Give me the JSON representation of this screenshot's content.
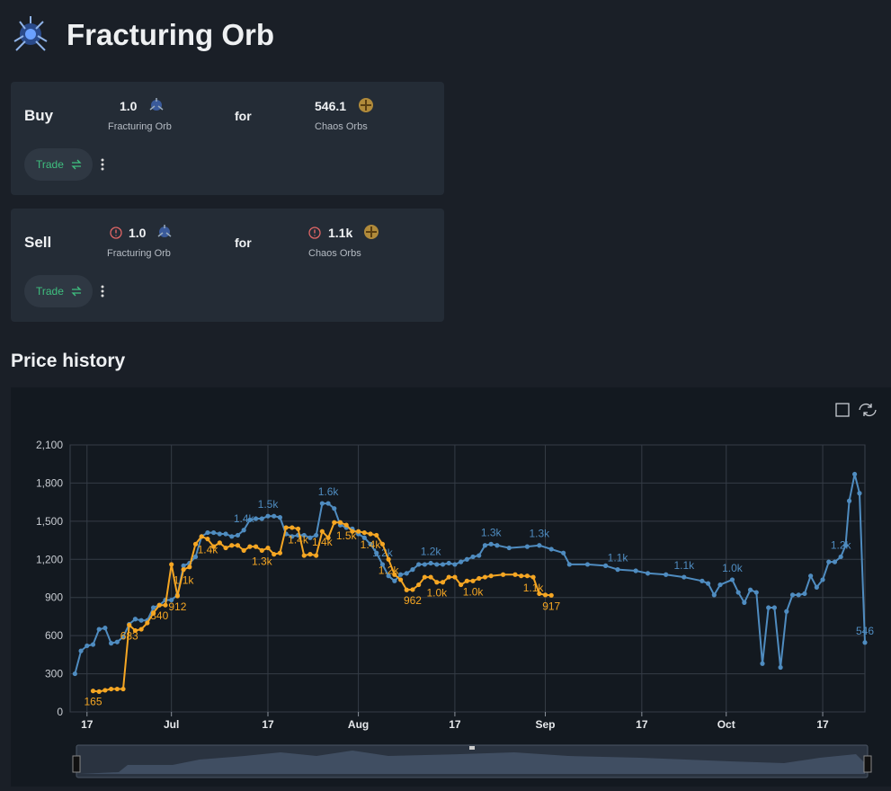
{
  "header": {
    "title": "Fracturing Orb"
  },
  "buy": {
    "label": "Buy",
    "give_amount": "1.0",
    "give_item": "Fracturing Orb",
    "for": "for",
    "get_amount": "546.1",
    "get_item": "Chaos Orbs",
    "button": "Trade"
  },
  "sell": {
    "label": "Sell",
    "give_amount": "1.0",
    "give_item": "Fracturing Orb",
    "for": "for",
    "get_amount": "1.1k",
    "get_item": "Chaos Orbs",
    "button": "Trade"
  },
  "section_title": "Price history",
  "chart_data": {
    "type": "line",
    "grid": true,
    "xlim": [
      14.2,
      146
    ],
    "ylim": [
      0,
      2100
    ],
    "xticks": [
      17,
      {
        "value": 31,
        "label": "Jul"
      },
      {
        "value": 47,
        "label": "17"
      },
      {
        "value": 62,
        "label": "Aug"
      },
      {
        "value": 78,
        "label": "17"
      },
      {
        "value": 93,
        "label": "Sep"
      },
      {
        "value": 109,
        "label": "17"
      },
      {
        "value": 123,
        "label": "Oct"
      },
      {
        "value": 139,
        "label": "17"
      }
    ],
    "yticks": [
      0,
      300,
      600,
      900,
      {
        "value": 1200,
        "label": "1,200"
      },
      {
        "value": 1500,
        "label": "1,500"
      },
      {
        "value": 1800,
        "label": "1,800"
      },
      {
        "value": 2100,
        "label": "2,100"
      }
    ],
    "series": [
      {
        "color": "#4f8cc0",
        "x": [
          15,
          16,
          17,
          18,
          19,
          20,
          21,
          22,
          23,
          24,
          25,
          26,
          27,
          28,
          29,
          30,
          31,
          32,
          33,
          34,
          35,
          36,
          37,
          38,
          39,
          40,
          41,
          42,
          43,
          44,
          45,
          46,
          47,
          48,
          49,
          50,
          51,
          52,
          53,
          54,
          55,
          56,
          57,
          58,
          59,
          60,
          61,
          62,
          63,
          64,
          65,
          66,
          67,
          68,
          69,
          70,
          71,
          72,
          73,
          74,
          75,
          76,
          77,
          78,
          79,
          80,
          81,
          82,
          83,
          84,
          85,
          87,
          90,
          92,
          94,
          96,
          97,
          100,
          103,
          105,
          108,
          110,
          113,
          116,
          119,
          120,
          121,
          122,
          124,
          125,
          126,
          127,
          128,
          129,
          130,
          131,
          132,
          133,
          134,
          135,
          136,
          137,
          138,
          139,
          140,
          141,
          142,
          142.8,
          143.4,
          144.3,
          145.1,
          146
        ],
        "values": [
          300,
          480,
          520,
          530,
          650,
          660,
          540,
          550,
          590,
          690,
          730,
          720,
          720,
          820,
          840,
          880,
          880,
          920,
          1150,
          1170,
          1220,
          1380,
          1410,
          1410,
          1400,
          1400,
          1380,
          1390,
          1430,
          1510,
          1520,
          1520,
          1540,
          1540,
          1530,
          1400,
          1380,
          1390,
          1390,
          1370,
          1390,
          1640,
          1640,
          1600,
          1470,
          1450,
          1440,
          1400,
          1370,
          1320,
          1250,
          1160,
          1070,
          1030,
          1080,
          1090,
          1120,
          1160,
          1160,
          1170,
          1160,
          1160,
          1170,
          1160,
          1180,
          1200,
          1220,
          1230,
          1310,
          1320,
          1310,
          1290,
          1300,
          1310,
          1280,
          1250,
          1160,
          1160,
          1150,
          1120,
          1110,
          1090,
          1080,
          1060,
          1030,
          1010,
          920,
          1000,
          1040,
          940,
          860,
          960,
          940,
          380,
          820,
          820,
          350,
          790,
          920,
          920,
          930,
          1070,
          980,
          1040,
          1180,
          1180,
          1220,
          1310,
          1660,
          1870,
          1720,
          546
        ],
        "value_labels": [
          null,
          null,
          null,
          null,
          null,
          null,
          null,
          null,
          null,
          null,
          null,
          null,
          null,
          null,
          null,
          null,
          null,
          null,
          null,
          null,
          null,
          null,
          null,
          null,
          null,
          null,
          null,
          null,
          "1.4k",
          null,
          null,
          null,
          "1.5k",
          null,
          null,
          null,
          null,
          null,
          null,
          null,
          null,
          null,
          "1.6k",
          null,
          null,
          null,
          null,
          null,
          null,
          null,
          null,
          "1.2k",
          null,
          null,
          null,
          null,
          null,
          null,
          null,
          "1.2k",
          null,
          null,
          null,
          null,
          null,
          null,
          null,
          null,
          null,
          "1.3k",
          null,
          null,
          null,
          "1.3k",
          null,
          null,
          null,
          null,
          null,
          "1.1k",
          null,
          null,
          null,
          "1.1k",
          null,
          null,
          null,
          null,
          "1.0k",
          null,
          null,
          null,
          null,
          null,
          null,
          null,
          null,
          null,
          null,
          null,
          null,
          null,
          null,
          null,
          null,
          null,
          "1.2k",
          null,
          null,
          null,
          null,
          "546"
        ]
      },
      {
        "color": "#f5a623",
        "x": [
          18,
          19,
          20,
          21,
          22,
          23,
          24,
          25,
          26,
          27,
          28,
          29,
          30,
          31,
          32,
          33,
          34,
          35,
          36,
          37,
          38,
          39,
          40,
          41,
          42,
          43,
          44,
          45,
          46,
          47,
          48,
          49,
          50,
          51,
          52,
          53,
          54,
          55,
          56,
          57,
          58,
          59,
          60,
          61,
          62,
          63,
          64,
          65,
          66,
          67,
          68,
          69,
          70,
          71,
          72,
          73,
          74,
          75,
          76,
          77,
          78,
          79,
          80,
          81,
          82,
          83,
          84,
          86,
          88,
          89,
          90,
          91,
          92,
          93,
          94
        ],
        "values": [
          165,
          160,
          170,
          180,
          180,
          180,
          683,
          640,
          650,
          700,
          780,
          840,
          840,
          1160,
          912,
          1120,
          1140,
          1320,
          1380,
          1360,
          1300,
          1330,
          1290,
          1310,
          1310,
          1270,
          1300,
          1300,
          1270,
          1290,
          1240,
          1250,
          1450,
          1450,
          1440,
          1230,
          1240,
          1230,
          1420,
          1370,
          1490,
          1490,
          1470,
          1420,
          1420,
          1410,
          1400,
          1390,
          1320,
          1200,
          1080,
          1040,
          960,
          962,
          1000,
          1060,
          1060,
          1020,
          1020,
          1060,
          1060,
          1000,
          1030,
          1030,
          1050,
          1060,
          1070,
          1080,
          1080,
          1070,
          1070,
          1060,
          930,
          920,
          917
        ],
        "value_labels": [
          "165",
          null,
          null,
          null,
          null,
          null,
          "683",
          null,
          null,
          null,
          null,
          "840",
          null,
          null,
          "912",
          "1.1k",
          null,
          null,
          null,
          "1.4k",
          null,
          null,
          null,
          null,
          null,
          null,
          null,
          null,
          "1.3k",
          null,
          null,
          null,
          null,
          null,
          "1.4k",
          null,
          null,
          null,
          "1.4k",
          null,
          null,
          null,
          "1.5k",
          null,
          null,
          null,
          "1.4k",
          null,
          null,
          "1.2k",
          null,
          null,
          null,
          "962",
          null,
          null,
          null,
          "1.0k",
          null,
          null,
          null,
          null,
          null,
          "1.0k",
          null,
          null,
          null,
          null,
          null,
          null,
          null,
          "1.1k",
          null,
          null,
          "917"
        ]
      }
    ]
  }
}
